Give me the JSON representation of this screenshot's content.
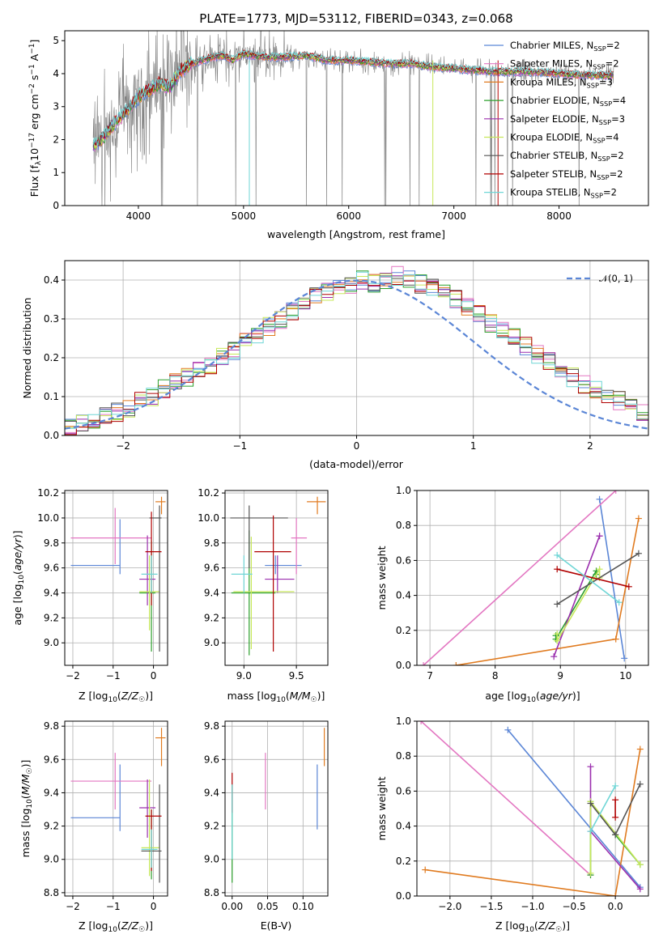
{
  "colors": {
    "chabrier_miles": "#5b86d6",
    "salpeter_miles": "#e377c2",
    "kroupa_miles": "#e07b20",
    "chabrier_elodie": "#2ca02c",
    "salpeter_elodie": "#9b2fae",
    "kroupa_elodie": "#c7e85a",
    "chabrier_stelib": "#555555",
    "salpeter_stelib": "#b00000",
    "kroupa_stelib": "#6fd6d6",
    "data": "#808080",
    "normal": "#5b86d6"
  },
  "chart_data": [
    {
      "id": "spectrum",
      "type": "line",
      "title": "PLATE=1773, MJD=53112, FIBERID=0343, z=0.068",
      "xlabel": "wavelength [Angstrom, rest frame]",
      "ylabel_main": "Flux [f",
      "ylabel_sub_lambda": "λ",
      "ylabel_mid": "10",
      "ylabel_exp1": "−17",
      "ylabel_mid2": " erg cm",
      "ylabel_exp2": "−2",
      "ylabel_mid3": " s",
      "ylabel_exp3": "−1",
      "ylabel_end": " A",
      "ylabel_exp4": "−1",
      "ylabel_close": "]",
      "xlim": [
        3300,
        8850
      ],
      "ylim": [
        0,
        5.3
      ],
      "xticks": [
        "4000",
        "5000",
        "6000",
        "7000",
        "8000"
      ],
      "xtick_values": [
        4000,
        5000,
        6000,
        7000,
        8000
      ],
      "yticks": [
        "0",
        "1",
        "2",
        "3",
        "4",
        "5"
      ],
      "ytick_values": [
        0,
        1,
        2,
        3,
        4,
        5
      ],
      "grid": false,
      "legend_position": "right",
      "continuum": {
        "x": [
          3570,
          3650,
          3700,
          3800,
          3900,
          4000,
          4100,
          4200,
          4300,
          4400,
          4500,
          4600,
          4700,
          4800,
          4900,
          5000,
          5200,
          5400,
          5600,
          5800,
          6000,
          6200,
          6400,
          6600,
          6800,
          7000,
          7200,
          7400,
          7600,
          7800,
          8000,
          8200,
          8500
        ],
        "y": [
          1.8,
          2.0,
          2.2,
          2.6,
          2.9,
          3.3,
          3.5,
          3.7,
          3.6,
          4.1,
          4.3,
          4.4,
          4.5,
          4.55,
          4.4,
          4.6,
          4.5,
          4.5,
          4.55,
          4.4,
          4.4,
          4.35,
          4.3,
          4.3,
          4.2,
          4.15,
          4.1,
          4.05,
          4.05,
          4.05,
          4.0,
          3.95,
          3.95
        ]
      },
      "legend": [
        {
          "label": "Chabrier MILES, N",
          "sub": "SSP",
          "value": "=2",
          "color_key": "chabrier_miles"
        },
        {
          "label": "Salpeter MILES, N",
          "sub": "SSP",
          "value": "=2",
          "color_key": "salpeter_miles"
        },
        {
          "label": "Kroupa MILES, N",
          "sub": "SSP",
          "value": "=3",
          "color_key": "kroupa_miles"
        },
        {
          "label": "Chabrier ELODIE, N",
          "sub": "SSP",
          "value": "=4",
          "color_key": "chabrier_elodie"
        },
        {
          "label": "Salpeter ELODIE, N",
          "sub": "SSP",
          "value": "=3",
          "color_key": "salpeter_elodie"
        },
        {
          "label": "Kroupa ELODIE, N",
          "sub": "SSP",
          "value": "=4",
          "color_key": "kroupa_elodie"
        },
        {
          "label": "Chabrier STELIB, N",
          "sub": "SSP",
          "value": "=2",
          "color_key": "chabrier_stelib"
        },
        {
          "label": "Salpeter STELIB, N",
          "sub": "SSP",
          "value": "=2",
          "color_key": "salpeter_stelib"
        },
        {
          "label": "Kroupa STELIB, N",
          "sub": "SSP",
          "value": "=2",
          "color_key": "kroupa_stelib"
        }
      ]
    },
    {
      "id": "residuals",
      "type": "line",
      "xlabel": "(data-model)/error",
      "ylabel": "Normed distribution",
      "xlim": [
        -2.5,
        2.5
      ],
      "ylim": [
        0,
        0.45
      ],
      "xticks": [
        "−2",
        "−1",
        "0",
        "1",
        "2"
      ],
      "xtick_values": [
        -2,
        -1,
        0,
        1,
        2
      ],
      "yticks": [
        "0.0",
        "0.1",
        "0.2",
        "0.3",
        "0.4"
      ],
      "ytick_values": [
        0,
        0.1,
        0.2,
        0.3,
        0.4
      ],
      "grid": true,
      "legend_position": "top-right",
      "normal_label": "𝒩(0, 1)",
      "bin_width": 0.1,
      "hist_base": [
        0.02,
        0.03,
        0.04,
        0.05,
        0.06,
        0.07,
        0.09,
        0.1,
        0.12,
        0.14,
        0.15,
        0.17,
        0.18,
        0.2,
        0.22,
        0.24,
        0.26,
        0.28,
        0.3,
        0.32,
        0.34,
        0.36,
        0.37,
        0.38,
        0.39,
        0.4,
        0.39,
        0.4,
        0.41,
        0.4,
        0.39,
        0.38,
        0.37,
        0.35,
        0.33,
        0.31,
        0.29,
        0.27,
        0.25,
        0.23,
        0.21,
        0.19,
        0.17,
        0.15,
        0.13,
        0.12,
        0.1,
        0.09,
        0.08,
        0.06
      ]
    },
    {
      "id": "z-age",
      "type": "scatter",
      "xlabel": "Z [log10(Z/Z☉)]",
      "ylabel": "age  [log10(age/yr)]",
      "xlim": [
        -2.2,
        0.35
      ],
      "ylim": [
        8.82,
        10.22
      ],
      "xticks": [
        "−2",
        "−1",
        "0"
      ],
      "xtick_values": [
        -2,
        -1,
        0
      ],
      "yticks": [
        "9.0",
        "9.2",
        "9.4",
        "9.6",
        "9.8",
        "10.0",
        "10.2"
      ],
      "ytick_values": [
        9.0,
        9.2,
        9.4,
        9.6,
        9.8,
        10.0,
        10.2
      ],
      "points": [
        {
          "c": "chabrier_miles",
          "x": -0.83,
          "xlo": -2.05,
          "xhi": -0.83,
          "y": 9.62,
          "ylo": 9.55,
          "yhi": 9.99
        },
        {
          "c": "salpeter_miles",
          "x": -0.95,
          "xlo": -2.05,
          "xhi": -0.05,
          "y": 9.84,
          "ylo": 9.63,
          "yhi": 10.08
        },
        {
          "c": "kroupa_miles",
          "x": 0.2,
          "xlo": 0.05,
          "xhi": 0.3,
          "y": 10.13,
          "ylo": 10.03,
          "yhi": 10.17
        },
        {
          "c": "chabrier_elodie",
          "x": -0.05,
          "xlo": -0.35,
          "xhi": 0.05,
          "y": 9.4,
          "ylo": 8.93,
          "yhi": 9.82
        },
        {
          "c": "salpeter_elodie",
          "x": -0.15,
          "xlo": -0.35,
          "xhi": 0.05,
          "y": 9.51,
          "ylo": 9.3,
          "yhi": 9.86
        },
        {
          "c": "kroupa_elodie",
          "x": -0.1,
          "xlo": -0.35,
          "xhi": 0.15,
          "y": 9.41,
          "ylo": 9.1,
          "yhi": 9.7
        },
        {
          "c": "chabrier_stelib",
          "x": 0.15,
          "xlo": -0.1,
          "xhi": 0.2,
          "y": 10.0,
          "ylo": 8.93,
          "yhi": 10.1
        },
        {
          "c": "salpeter_stelib",
          "x": -0.05,
          "xlo": -0.2,
          "xhi": 0.2,
          "y": 9.73,
          "ylo": 9.3,
          "yhi": 10.05
        },
        {
          "c": "kroupa_stelib",
          "x": -0.05,
          "xlo": -0.3,
          "xhi": 0.1,
          "y": 9.55,
          "ylo": 9.4,
          "yhi": 9.7
        }
      ]
    },
    {
      "id": "mass-age",
      "type": "scatter",
      "xlabel": "mass [log10(M/M☉)]",
      "xlim": [
        8.82,
        9.8
      ],
      "ylim": [
        8.82,
        10.22
      ],
      "xticks": [
        "9.0",
        "9.5"
      ],
      "xtick_values": [
        9.0,
        9.5
      ],
      "yticks": [
        "9.0",
        "9.2",
        "9.4",
        "9.6",
        "9.8",
        "10.0",
        "10.2"
      ],
      "ytick_values": [
        9.0,
        9.2,
        9.4,
        9.6,
        9.8,
        10.0,
        10.2
      ],
      "points": [
        {
          "c": "chabrier_miles",
          "x": 9.3,
          "xlo": 9.2,
          "xhi": 9.55,
          "y": 9.62,
          "ylo": 9.55,
          "yhi": 9.7
        },
        {
          "c": "salpeter_miles",
          "x": 9.5,
          "xlo": 9.45,
          "xhi": 9.6,
          "y": 9.84,
          "ylo": 9.55,
          "yhi": 10.0
        },
        {
          "c": "kroupa_miles",
          "x": 9.7,
          "xlo": 9.6,
          "xhi": 9.78,
          "y": 10.13,
          "ylo": 10.03,
          "yhi": 10.17
        },
        {
          "c": "chabrier_elodie",
          "x": 9.05,
          "xlo": 8.88,
          "xhi": 9.3,
          "y": 9.4,
          "ylo": 8.9,
          "yhi": 9.9
        },
        {
          "c": "salpeter_elodie",
          "x": 9.32,
          "xlo": 9.2,
          "xhi": 9.48,
          "y": 9.51,
          "ylo": 9.4,
          "yhi": 9.7
        },
        {
          "c": "kroupa_elodie",
          "x": 9.07,
          "xlo": 8.9,
          "xhi": 9.48,
          "y": 9.41,
          "ylo": 8.95,
          "yhi": 9.85
        },
        {
          "c": "chabrier_stelib",
          "x": 9.05,
          "xlo": 8.87,
          "xhi": 9.42,
          "y": 10.0,
          "ylo": 9.6,
          "yhi": 10.1
        },
        {
          "c": "salpeter_stelib",
          "x": 9.28,
          "xlo": 9.1,
          "xhi": 9.45,
          "y": 9.73,
          "ylo": 8.93,
          "yhi": 10.02
        },
        {
          "c": "kroupa_stelib",
          "x": 9.0,
          "xlo": 8.88,
          "xhi": 9.08,
          "y": 9.55,
          "ylo": 9.4,
          "yhi": 9.7
        }
      ]
    },
    {
      "id": "age-weight",
      "type": "line",
      "xlabel": "age  [log10(age/yr)]",
      "ylabel": "mass weight",
      "xlim": [
        6.8,
        10.35
      ],
      "ylim": [
        0,
        1.0
      ],
      "xticks": [
        "7",
        "8",
        "9",
        "10"
      ],
      "xtick_values": [
        7,
        8,
        9,
        10
      ],
      "yticks": [
        "0.0",
        "0.2",
        "0.4",
        "0.6",
        "0.8",
        "1.0"
      ],
      "ytick_values": [
        0,
        0.2,
        0.4,
        0.6,
        0.8,
        1.0
      ],
      "grid": true,
      "lines": [
        {
          "c": "chabrier_miles",
          "x": [
            9.6,
            9.98
          ],
          "y": [
            0.95,
            0.04
          ]
        },
        {
          "c": "salpeter_miles",
          "x": [
            6.9,
            9.85
          ],
          "y": [
            0.0,
            1.0
          ]
        },
        {
          "c": "kroupa_miles",
          "x": [
            7.4,
            9.85,
            10.2
          ],
          "y": [
            0.0,
            0.15,
            0.84
          ]
        },
        {
          "c": "chabrier_elodie",
          "x": [
            8.93,
            8.93,
            9.55,
            9.55
          ],
          "y": [
            0.17,
            0.15,
            0.54,
            0.52
          ]
        },
        {
          "c": "salpeter_elodie",
          "x": [
            8.9,
            9.6,
            9.6
          ],
          "y": [
            0.05,
            0.74,
            0.74
          ]
        },
        {
          "c": "kroupa_elodie",
          "x": [
            8.95,
            8.95,
            9.6,
            9.6
          ],
          "y": [
            0.18,
            0.14,
            0.55,
            0.5
          ]
        },
        {
          "c": "chabrier_stelib",
          "x": [
            8.95,
            10.2
          ],
          "y": [
            0.35,
            0.64
          ]
        },
        {
          "c": "salpeter_stelib",
          "x": [
            8.95,
            10.05
          ],
          "y": [
            0.55,
            0.45
          ]
        },
        {
          "c": "kroupa_stelib",
          "x": [
            8.95,
            9.9
          ],
          "y": [
            0.63,
            0.36
          ]
        }
      ]
    },
    {
      "id": "z-mass",
      "type": "scatter",
      "xlabel": "Z [log10(Z/Z☉)]",
      "ylabel": "mass [log10(M/M☉)]",
      "xlim": [
        -2.2,
        0.35
      ],
      "ylim": [
        8.78,
        9.83
      ],
      "xticks": [
        "−2",
        "−1",
        "0"
      ],
      "xtick_values": [
        -2,
        -1,
        0
      ],
      "yticks": [
        "8.8",
        "9.0",
        "9.2",
        "9.4",
        "9.6",
        "9.8"
      ],
      "ytick_values": [
        8.8,
        9.0,
        9.2,
        9.4,
        9.6,
        9.8
      ],
      "points": [
        {
          "c": "chabrier_miles",
          "x": -0.83,
          "xlo": -2.05,
          "xhi": -0.83,
          "y": 9.25,
          "ylo": 9.17,
          "yhi": 9.57
        },
        {
          "c": "salpeter_miles",
          "x": -0.95,
          "xlo": -2.05,
          "xhi": -0.05,
          "y": 9.47,
          "ylo": 9.3,
          "yhi": 9.64
        },
        {
          "c": "kroupa_miles",
          "x": 0.2,
          "xlo": 0.05,
          "xhi": 0.3,
          "y": 9.73,
          "ylo": 9.56,
          "yhi": 9.79
        },
        {
          "c": "chabrier_elodie",
          "x": -0.05,
          "xlo": -0.3,
          "xhi": 0.05,
          "y": 9.05,
          "ylo": 8.88,
          "yhi": 9.3
        },
        {
          "c": "salpeter_elodie",
          "x": -0.15,
          "xlo": -0.35,
          "xhi": 0.05,
          "y": 9.31,
          "ylo": 9.13,
          "yhi": 9.48
        },
        {
          "c": "kroupa_elodie",
          "x": -0.1,
          "xlo": -0.3,
          "xhi": 0.15,
          "y": 9.07,
          "ylo": 8.9,
          "yhi": 9.48
        },
        {
          "c": "chabrier_stelib",
          "x": 0.15,
          "xlo": -0.3,
          "xhi": 0.2,
          "y": 9.05,
          "ylo": 8.86,
          "yhi": 9.45
        },
        {
          "c": "salpeter_stelib",
          "x": -0.05,
          "xlo": -0.2,
          "xhi": 0.2,
          "y": 9.26,
          "ylo": 8.93,
          "yhi": 9.3
        },
        {
          "c": "kroupa_stelib",
          "x": -0.05,
          "xlo": -0.3,
          "xhi": 0.1,
          "y": 9.06,
          "ylo": 8.95,
          "yhi": 9.18
        }
      ]
    },
    {
      "id": "ebv-mass",
      "type": "scatter",
      "xlabel": "E(B-V)",
      "xlim": [
        -0.01,
        0.135
      ],
      "ylim": [
        8.78,
        9.83
      ],
      "xticks": [
        "0.00",
        "0.05",
        "0.10"
      ],
      "xtick_values": [
        0,
        0.05,
        0.1
      ],
      "yticks": [
        "8.8",
        "9.0",
        "9.2",
        "9.4",
        "9.6",
        "9.8"
      ],
      "ytick_values": [
        8.8,
        9.0,
        9.2,
        9.4,
        9.6,
        9.8
      ],
      "points": [
        {
          "c": "chabrier_miles",
          "x": 0.12,
          "y": 9.37,
          "ylo": 9.18,
          "yhi": 9.57
        },
        {
          "c": "salpeter_miles",
          "x": 0.047,
          "y": 9.47,
          "ylo": 9.3,
          "yhi": 9.64
        },
        {
          "c": "kroupa_miles",
          "x": 0.13,
          "y": 9.67,
          "ylo": 9.56,
          "yhi": 9.79
        },
        {
          "c": "chabrier_elodie",
          "x": 0.0,
          "y": 9.1,
          "ylo": 8.86,
          "yhi": 9.45
        },
        {
          "c": "salpeter_stelib",
          "x": 0.0,
          "y": 9.4,
          "ylo": 9.28,
          "yhi": 9.52
        },
        {
          "c": "kroupa_stelib",
          "x": 0.0,
          "y": 9.2,
          "ylo": 9.0,
          "yhi": 9.45
        }
      ]
    },
    {
      "id": "z-weight",
      "type": "line",
      "xlabel": "Z [log10(Z/Z☉)]",
      "ylabel": "mass weight",
      "xlim": [
        -2.4,
        0.4
      ],
      "ylim": [
        0,
        1.0
      ],
      "xticks": [
        "−2.0",
        "−1.5",
        "−1.0",
        "−0.5",
        "0.0"
      ],
      "xtick_values": [
        -2.0,
        -1.5,
        -1.0,
        -0.5,
        0.0
      ],
      "yticks": [
        "0.0",
        "0.2",
        "0.4",
        "0.6",
        "0.8",
        "1.0"
      ],
      "ytick_values": [
        0,
        0.2,
        0.4,
        0.6,
        0.8,
        1.0
      ],
      "grid": true,
      "lines": [
        {
          "c": "chabrier_miles",
          "x": [
            -1.3,
            0.3
          ],
          "y": [
            0.95,
            0.05
          ]
        },
        {
          "c": "salpeter_miles",
          "x": [
            -2.35,
            -0.3
          ],
          "y": [
            1.0,
            0.12
          ]
        },
        {
          "c": "kroupa_miles",
          "x": [
            -2.3,
            0.0,
            0.3
          ],
          "y": [
            0.15,
            0.0,
            0.84
          ]
        },
        {
          "c": "chabrier_elodie",
          "x": [
            -0.3,
            -0.3,
            0.0,
            0.3
          ],
          "y": [
            0.12,
            0.54,
            0.35,
            0.18
          ]
        },
        {
          "c": "salpeter_elodie",
          "x": [
            -0.3,
            -0.3,
            0.3
          ],
          "y": [
            0.74,
            0.37,
            0.04
          ]
        },
        {
          "c": "kroupa_elodie",
          "x": [
            -0.3,
            -0.3,
            0.3
          ],
          "y": [
            0.13,
            0.54,
            0.18
          ]
        },
        {
          "c": "chabrier_stelib",
          "x": [
            -0.3,
            0.0,
            0.3
          ],
          "y": [
            0.53,
            0.35,
            0.64
          ]
        },
        {
          "c": "salpeter_stelib",
          "x": [
            0.0,
            0.0
          ],
          "y": [
            0.55,
            0.45
          ]
        },
        {
          "c": "kroupa_stelib",
          "x": [
            -0.3,
            0.0
          ],
          "y": [
            0.37,
            0.63
          ]
        }
      ]
    }
  ]
}
